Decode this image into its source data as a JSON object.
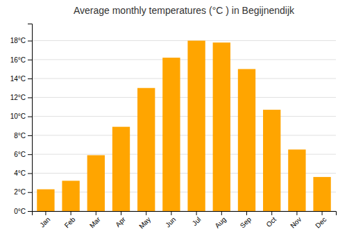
{
  "chart_data": {
    "type": "bar",
    "title": "Average monthly temperatures (°C ) in Begijnendijk",
    "categories": [
      "Jan",
      "Feb",
      "Mar",
      "Apr",
      "May",
      "Jun",
      "Jul",
      "Aug",
      "Sep",
      "Oct",
      "Nov",
      "Dec"
    ],
    "values": [
      2.3,
      3.2,
      5.9,
      8.9,
      13.0,
      16.2,
      18.0,
      17.8,
      15.0,
      10.7,
      6.5,
      3.6
    ],
    "color": "#FFA500",
    "ylim": [
      0,
      19.8
    ],
    "yticks": [
      {
        "value": 0,
        "label": "0°C"
      },
      {
        "value": 2,
        "label": "2°C"
      },
      {
        "value": 4,
        "label": "4°C"
      },
      {
        "value": 6,
        "label": "6°C"
      },
      {
        "value": 8,
        "label": "8°C"
      },
      {
        "value": 10,
        "label": "10°C"
      },
      {
        "value": 12,
        "label": "12°C"
      },
      {
        "value": 14,
        "label": "14°C"
      },
      {
        "value": 16,
        "label": "16°C"
      },
      {
        "value": 18,
        "label": "18°C"
      }
    ],
    "grid": true
  }
}
